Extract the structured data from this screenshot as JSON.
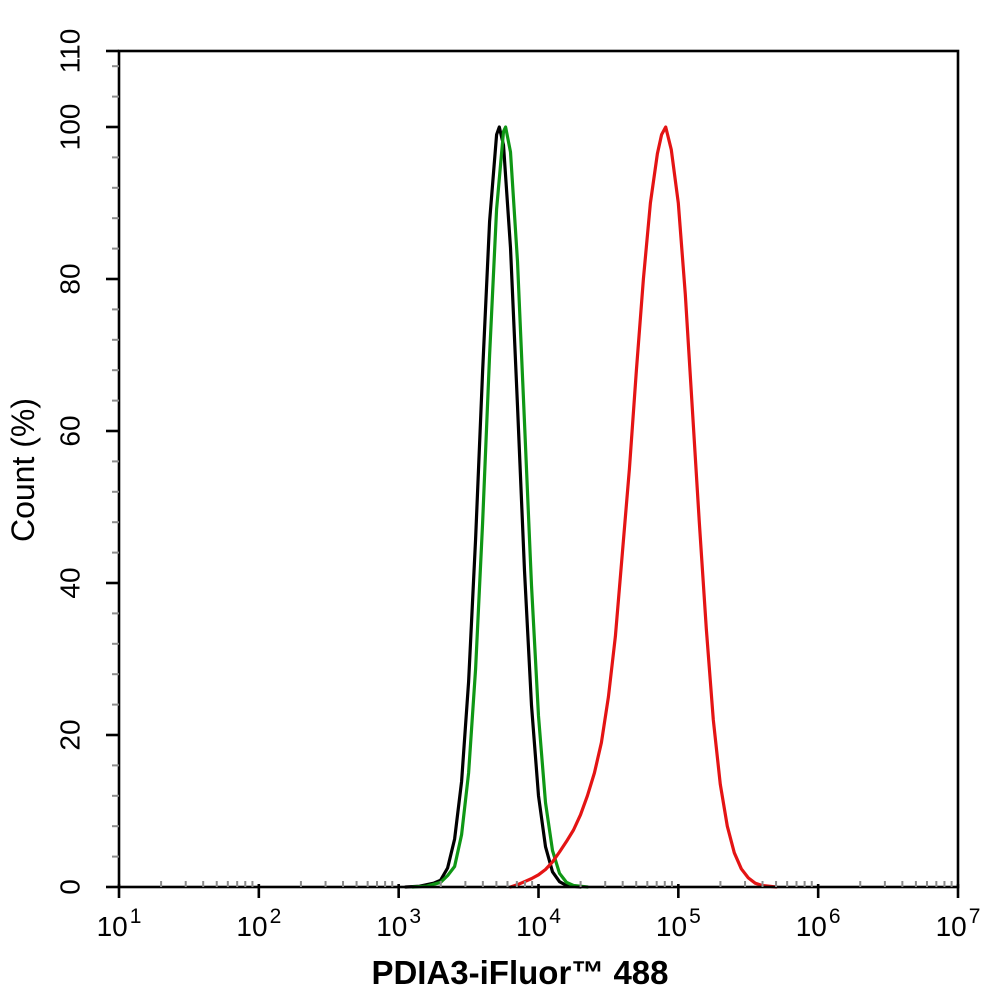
{
  "page": {
    "background": "#ffffff"
  },
  "chart_data": {
    "type": "line",
    "subtype": "flow-cytometry-overlay-histogram",
    "title": "",
    "xlabel": "PDIA3-iFluor™ 488",
    "ylabel": "Count (%)",
    "x_scale": "log10",
    "x_log_range": [
      1,
      7
    ],
    "x_major_tick_exponents": [
      1,
      2,
      3,
      4,
      5,
      6,
      7
    ],
    "x_minor_mantissas": [
      2,
      3,
      4,
      5,
      6,
      7,
      8,
      9
    ],
    "ylim": [
      0,
      110
    ],
    "y_major_ticks": [
      0,
      20,
      40,
      60,
      80,
      100,
      110
    ],
    "y_minor_step": 4,
    "grid": false,
    "legend": null,
    "frame": "full-box",
    "axis_color": "#000000",
    "minor_tick_color": "#8c8c8c",
    "series": [
      {
        "name": "black",
        "color": "#000000",
        "peak_x": 5200,
        "peak_y": 100,
        "points_log_pct": [
          [
            3.05,
            0
          ],
          [
            3.15,
            0.1
          ],
          [
            3.25,
            0.5
          ],
          [
            3.3,
            0.9
          ],
          [
            3.35,
            2.5
          ],
          [
            3.4,
            6.3
          ],
          [
            3.45,
            13.9
          ],
          [
            3.5,
            27
          ],
          [
            3.55,
            45.8
          ],
          [
            3.6,
            67.8
          ],
          [
            3.65,
            87.6
          ],
          [
            3.7,
            99
          ],
          [
            3.72,
            100
          ],
          [
            3.75,
            97.6
          ],
          [
            3.8,
            84.1
          ],
          [
            3.85,
            63.3
          ],
          [
            3.9,
            41.6
          ],
          [
            3.95,
            23.9
          ],
          [
            4.0,
            12
          ],
          [
            4.05,
            5.3
          ],
          [
            4.1,
            2
          ],
          [
            4.15,
            0.7
          ],
          [
            4.2,
            0.2
          ],
          [
            4.3,
            0
          ]
        ]
      },
      {
        "name": "green",
        "color": "#0f9715",
        "peak_x": 5800,
        "peak_y": 100,
        "points_log_pct": [
          [
            3.1,
            0
          ],
          [
            3.2,
            0.1
          ],
          [
            3.3,
            0.6
          ],
          [
            3.35,
            1.5
          ],
          [
            3.4,
            2.7
          ],
          [
            3.45,
            6.9
          ],
          [
            3.5,
            15
          ],
          [
            3.55,
            28.7
          ],
          [
            3.6,
            47.9
          ],
          [
            3.65,
            70
          ],
          [
            3.7,
            89.2
          ],
          [
            3.75,
            99.4
          ],
          [
            3.765,
            100
          ],
          [
            3.8,
            96.7
          ],
          [
            3.85,
            82.3
          ],
          [
            3.9,
            61.1
          ],
          [
            3.95,
            39.7
          ],
          [
            4.0,
            22.5
          ],
          [
            4.05,
            11.1
          ],
          [
            4.1,
            4.8
          ],
          [
            4.15,
            1.8
          ],
          [
            4.2,
            0.6
          ],
          [
            4.25,
            0.2
          ],
          [
            4.35,
            0
          ]
        ]
      },
      {
        "name": "red",
        "color": "#e41414",
        "peak_x": 81000,
        "peak_y": 100,
        "points_log_pct": [
          [
            3.8,
            0
          ],
          [
            3.85,
            0.3
          ],
          [
            3.9,
            0.7
          ],
          [
            3.95,
            1.1
          ],
          [
            4.0,
            1.6
          ],
          [
            4.05,
            2.3
          ],
          [
            4.1,
            3.3
          ],
          [
            4.15,
            4.6
          ],
          [
            4.2,
            6
          ],
          [
            4.25,
            7.5
          ],
          [
            4.3,
            9.5
          ],
          [
            4.35,
            12
          ],
          [
            4.4,
            15
          ],
          [
            4.45,
            19
          ],
          [
            4.5,
            25
          ],
          [
            4.55,
            33
          ],
          [
            4.6,
            44
          ],
          [
            4.65,
            55
          ],
          [
            4.7,
            68
          ],
          [
            4.75,
            80
          ],
          [
            4.8,
            90
          ],
          [
            4.85,
            96.5
          ],
          [
            4.88,
            99
          ],
          [
            4.91,
            100
          ],
          [
            4.95,
            97
          ],
          [
            5.0,
            90
          ],
          [
            5.05,
            78
          ],
          [
            5.1,
            63
          ],
          [
            5.15,
            48
          ],
          [
            5.2,
            34
          ],
          [
            5.25,
            22
          ],
          [
            5.3,
            13.5
          ],
          [
            5.35,
            8
          ],
          [
            5.4,
            4.5
          ],
          [
            5.45,
            2.4
          ],
          [
            5.5,
            1.2
          ],
          [
            5.55,
            0.5
          ],
          [
            5.6,
            0.2
          ],
          [
            5.7,
            0
          ]
        ]
      }
    ]
  }
}
